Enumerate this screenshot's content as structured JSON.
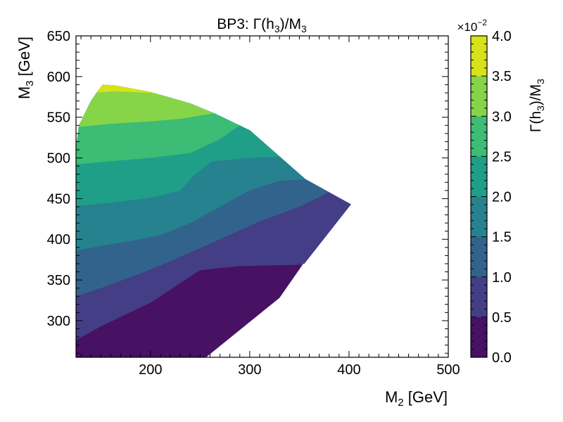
{
  "chart_data": {
    "type": "contourf",
    "title": "BP3: Γ(h₃)/M₃",
    "xlabel": "M₂ [GeV]",
    "ylabel": "M₃ [GeV]",
    "xlim": [
      125,
      500
    ],
    "ylim": [
      255,
      650
    ],
    "xticks": [
      200,
      300,
      400,
      500
    ],
    "yticks": [
      300,
      350,
      400,
      450,
      500,
      550,
      600,
      650
    ],
    "colorbar": {
      "label": "Γ(h₃)/M₃",
      "multiplier": "×10⁻²",
      "ticks": [
        0.0,
        0.5,
        1.0,
        1.5,
        2.0,
        2.5,
        3.0,
        3.5,
        4.0
      ],
      "levels": [
        0.0,
        0.5,
        1.0,
        1.5,
        2.0,
        2.5,
        3.0,
        3.5,
        4.0
      ],
      "colors": [
        "#471164",
        "#433e85",
        "#32638c",
        "#26828e",
        "#1f9f88",
        "#3cbc74",
        "#86d549",
        "#d8e219"
      ]
    },
    "region": {
      "description": "filled region bounded by data",
      "boundary": [
        [
          125,
          255
        ],
        [
          256,
          255
        ],
        [
          330,
          328
        ],
        [
          354,
          370
        ],
        [
          355,
          370
        ],
        [
          402,
          443
        ],
        [
          356,
          474
        ],
        [
          300,
          534
        ],
        [
          264,
          555
        ],
        [
          240,
          567
        ],
        [
          200,
          581
        ],
        [
          165,
          589
        ],
        [
          152,
          590
        ],
        [
          148,
          584
        ],
        [
          140,
          570
        ],
        [
          128,
          540
        ],
        [
          125,
          512
        ]
      ]
    },
    "contour_boundaries": [
      {
        "between": [
          0.0,
          0.5
        ],
        "points": [
          [
            125,
            276
          ],
          [
            150,
            293
          ],
          [
            200,
            322
          ],
          [
            250,
            362
          ],
          [
            290,
            367
          ],
          [
            360,
            369
          ],
          [
            370,
            370
          ]
        ]
      },
      {
        "between": [
          0.5,
          1.0
        ],
        "points": [
          [
            125,
            330
          ],
          [
            150,
            340
          ],
          [
            190,
            358
          ],
          [
            220,
            373
          ],
          [
            270,
            400
          ],
          [
            310,
            422
          ],
          [
            350,
            440
          ],
          [
            380,
            458
          ],
          [
            402,
            443
          ]
        ]
      },
      {
        "between": [
          1.0,
          1.5
        ],
        "points": [
          [
            125,
            386
          ],
          [
            150,
            392
          ],
          [
            180,
            398
          ],
          [
            210,
            405
          ],
          [
            240,
            420
          ],
          [
            270,
            440
          ],
          [
            300,
            460
          ],
          [
            330,
            472
          ],
          [
            362,
            474
          ]
        ]
      },
      {
        "between": [
          1.5,
          2.0
        ],
        "points": [
          [
            125,
            441
          ],
          [
            160,
            445
          ],
          [
            200,
            451
          ],
          [
            230,
            460
          ],
          [
            245,
            480
          ],
          [
            262,
            496
          ],
          [
            300,
            500
          ],
          [
            340,
            502
          ],
          [
            356,
            506
          ]
        ]
      },
      {
        "between": [
          2.0,
          2.5
        ],
        "points": [
          [
            125,
            492
          ],
          [
            160,
            496
          ],
          [
            200,
            500
          ],
          [
            240,
            506
          ],
          [
            270,
            523
          ],
          [
            290,
            540
          ],
          [
            310,
            542
          ],
          [
            330,
            545
          ]
        ]
      },
      {
        "between": [
          2.5,
          3.0
        ],
        "points": [
          [
            125,
            538
          ],
          [
            160,
            542
          ],
          [
            200,
            545
          ],
          [
            230,
            548
          ],
          [
            265,
            555
          ]
        ]
      },
      {
        "between": [
          3.0,
          3.5
        ],
        "points": [
          [
            140,
            580
          ],
          [
            165,
            582
          ],
          [
            200,
            580
          ],
          [
            230,
            572
          ]
        ]
      }
    ]
  }
}
